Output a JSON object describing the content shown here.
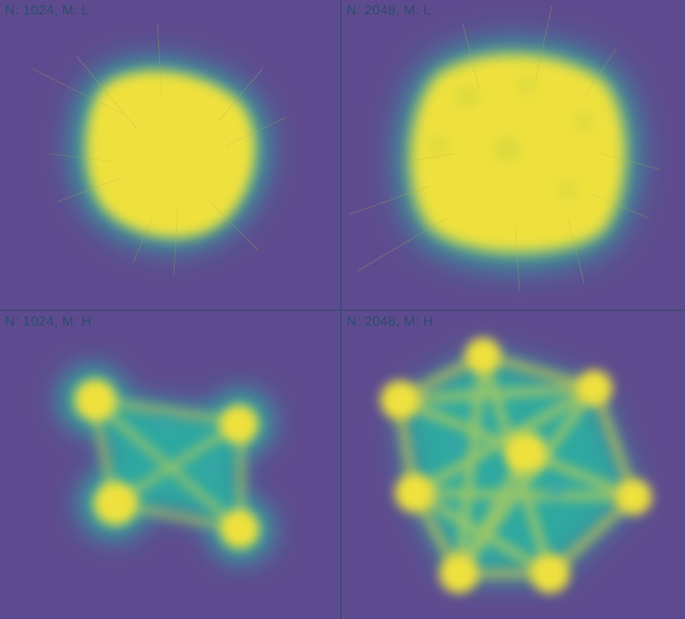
{
  "colors": {
    "background": "#5e4b8f",
    "low": "#5a4d8f",
    "mid": "#2fa8a0",
    "high": "#f2e23a",
    "label": "#2a4e6a",
    "divider": "#3f4a78"
  },
  "panels": [
    {
      "id": "tl",
      "label": "N: 1024, M: L",
      "mode": "L",
      "nodes": 1024
    },
    {
      "id": "tr",
      "label": "N: 2048, M: L",
      "mode": "L",
      "nodes": 2048
    },
    {
      "id": "bl",
      "label": "N: 1024, M: H",
      "mode": "H",
      "nodes": 1024
    },
    {
      "id": "br",
      "label": "N: 2048, M: H",
      "mode": "H",
      "nodes": 2048
    }
  ]
}
